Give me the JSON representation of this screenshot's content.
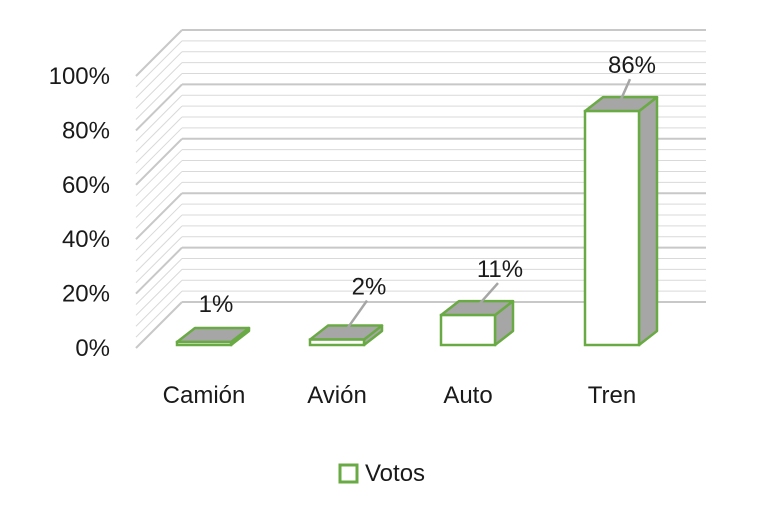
{
  "chart_data": {
    "type": "bar",
    "categories": [
      "Camión",
      "Avión",
      "Auto",
      "Tren"
    ],
    "series": [
      {
        "name": "Votos",
        "values": [
          1,
          2,
          11,
          86
        ]
      }
    ],
    "data_labels": [
      "1%",
      "2%",
      "11%",
      "86%"
    ],
    "y_ticks": [
      "0%",
      "20%",
      "40%",
      "60%",
      "80%",
      "100%"
    ],
    "ylim": [
      0,
      100
    ],
    "unit": "%",
    "legend_position": "bottom",
    "grid": true,
    "style": "3d-column",
    "colors": {
      "bar_fill": "#ffffff",
      "bar_stroke": "#6aaa44",
      "bar_side": "#a6a6a6",
      "bar_top": "#a6a6a6",
      "grid": "#d9d9d9",
      "leader_line": "#a6a6a6"
    }
  }
}
